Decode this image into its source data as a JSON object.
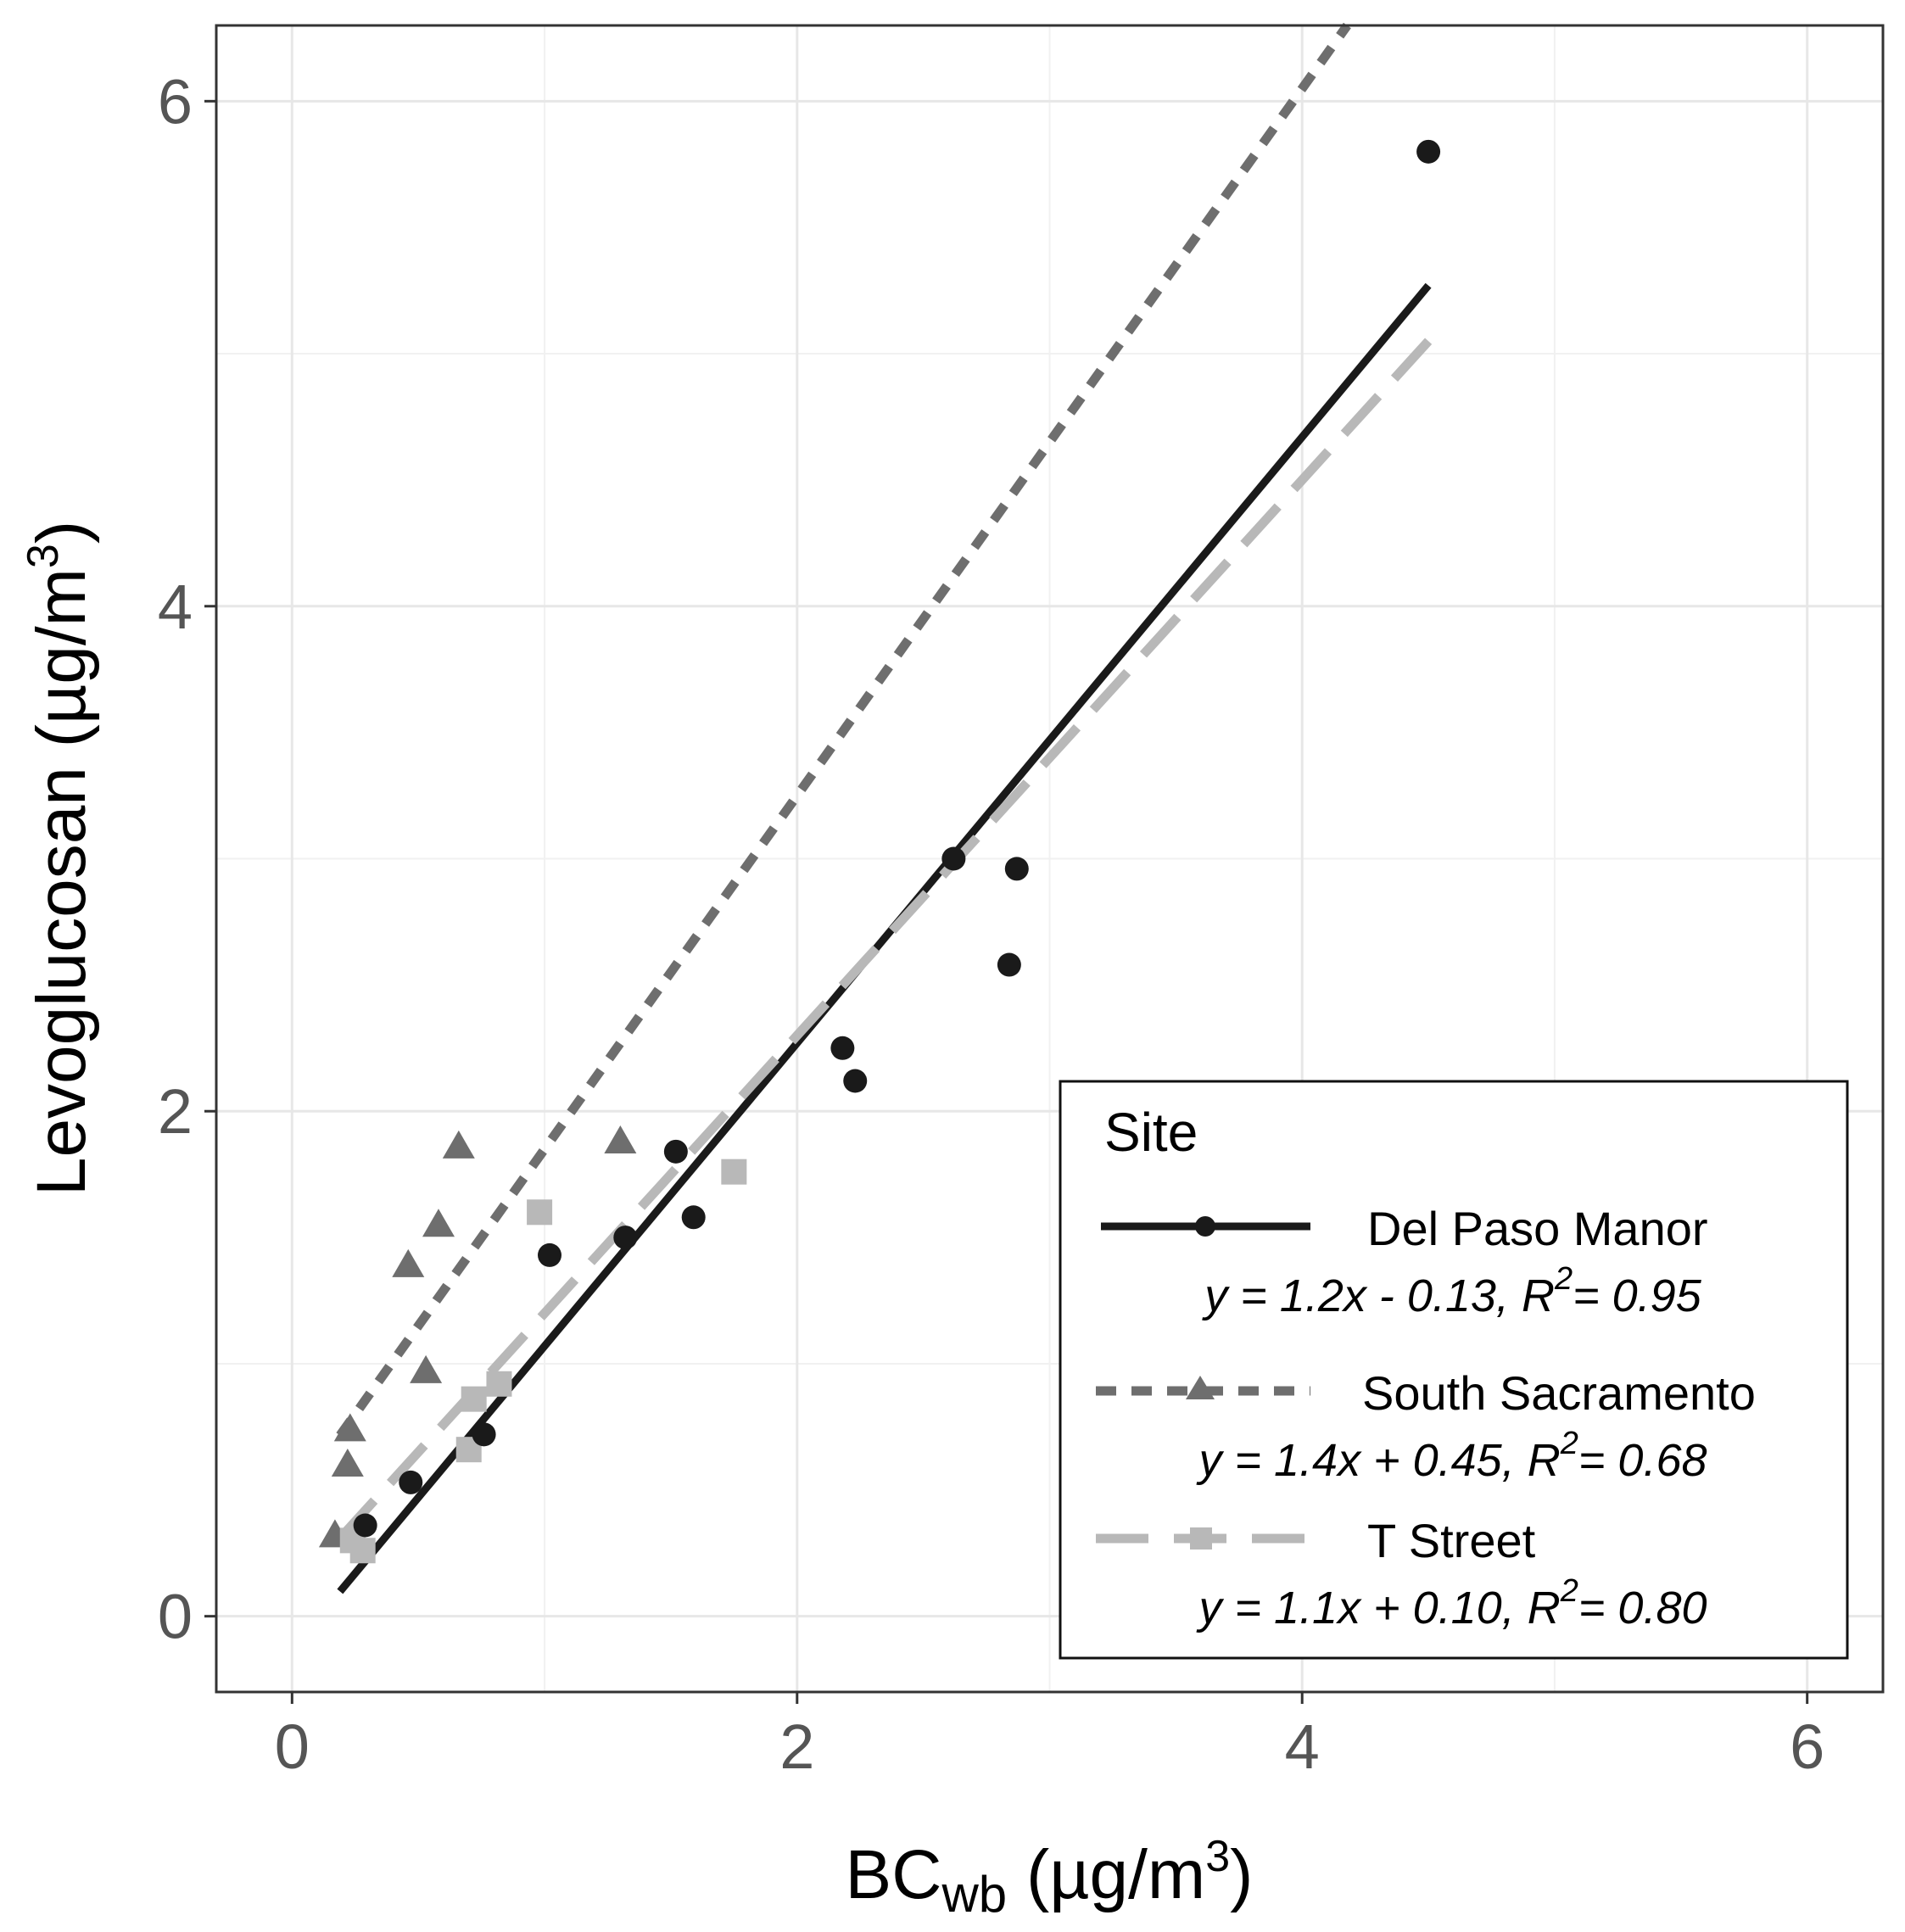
{
  "chart_data": {
    "type": "scatter",
    "xlabel": {
      "main": "BC",
      "sub": "wb",
      "unit": " (µg/m",
      "sup": "3",
      "close": ")"
    },
    "ylabel": {
      "main": "Levoglucosan (µg/m",
      "sup": "3",
      "close": ")"
    },
    "xlim": [
      -0.3,
      6.3
    ],
    "ylim": [
      -0.3,
      6.3
    ],
    "xticks": [
      0,
      2,
      4,
      6
    ],
    "yticks": [
      0,
      2,
      4,
      6
    ],
    "x_minor": [
      -0.3,
      1,
      3,
      5,
      6.3
    ],
    "y_minor": [
      -0.3,
      1,
      3,
      5,
      6.3
    ],
    "grid": true,
    "legend": {
      "title": "Site",
      "position": "bottom-right"
    },
    "series": [
      {
        "name": "Del Paso Manor",
        "equation": "y = 1.2x - 0.13, R",
        "r2": "= 0.95",
        "color": "#1a1a1a",
        "marker": "circle",
        "line_style": "solid",
        "fit": {
          "slope": 1.2,
          "intercept": -0.13,
          "xrange": [
            0.19,
            4.5
          ]
        },
        "points": [
          [
            0.29,
            0.36
          ],
          [
            0.47,
            0.53
          ],
          [
            0.76,
            0.72
          ],
          [
            1.02,
            1.43
          ],
          [
            1.32,
            1.5
          ],
          [
            1.52,
            1.84
          ],
          [
            1.59,
            1.58
          ],
          [
            2.18,
            2.25
          ],
          [
            2.23,
            2.12
          ],
          [
            2.62,
            3.0
          ],
          [
            2.84,
            2.58
          ],
          [
            2.87,
            2.96
          ],
          [
            4.5,
            5.8
          ]
        ]
      },
      {
        "name": "South Sacramento",
        "equation": "y = 1.4x + 0.45, R",
        "r2": "= 0.68",
        "color": "#6e6e6e",
        "marker": "triangle",
        "line_style": "dotted",
        "fit": {
          "slope": 1.4,
          "intercept": 0.45,
          "xrange": [
            0.19,
            4.5
          ]
        },
        "points": [
          [
            0.17,
            0.32
          ],
          [
            0.22,
            0.6
          ],
          [
            0.23,
            0.74
          ],
          [
            0.46,
            1.39
          ],
          [
            0.53,
            0.97
          ],
          [
            0.58,
            1.55
          ],
          [
            0.66,
            1.86
          ],
          [
            1.3,
            1.88
          ]
        ]
      },
      {
        "name": "T Street",
        "equation": "y = 1.1x + 0.10, R",
        "r2": "= 0.80",
        "color": "#b8b8b8",
        "marker": "square",
        "line_style": "dashed",
        "fit": {
          "slope": 1.1,
          "intercept": 0.1,
          "xrange": [
            0.19,
            4.5
          ]
        },
        "points": [
          [
            0.24,
            0.3
          ],
          [
            0.28,
            0.26
          ],
          [
            0.7,
            0.66
          ],
          [
            0.72,
            0.86
          ],
          [
            0.82,
            0.92
          ],
          [
            0.98,
            1.6
          ],
          [
            1.75,
            1.76
          ]
        ]
      }
    ]
  }
}
